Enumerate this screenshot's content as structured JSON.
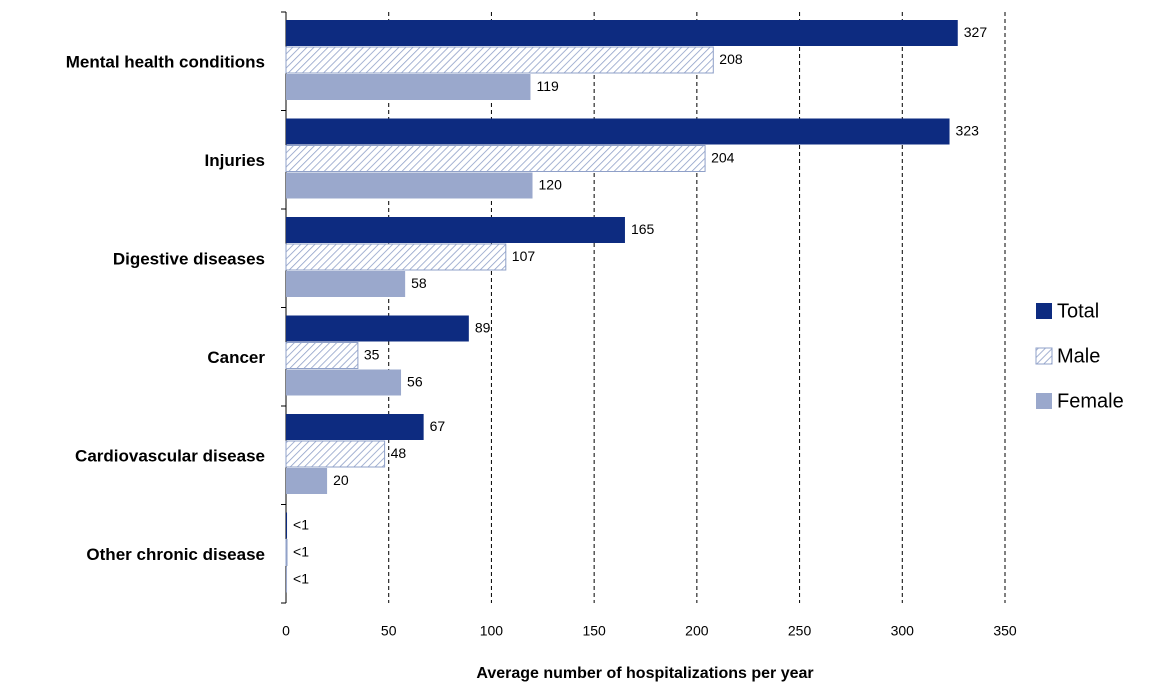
{
  "chart_data": {
    "type": "hbar",
    "x_label": "Average number of hospitalizations per year",
    "categories": [
      "Mental health conditions",
      "Injuries",
      "Digestive diseases",
      "Cancer",
      "Cardiovascular disease",
      "Other chronic disease"
    ],
    "series": [
      {
        "name": "Total",
        "color": "#0d2b80",
        "hatch": false,
        "values": [
          327,
          323,
          165,
          89,
          67,
          0.5
        ],
        "value_labels": [
          "327",
          "323",
          "165",
          "89",
          "67",
          "<1"
        ]
      },
      {
        "name": "Male",
        "color": "#8fa0c8",
        "hatch": true,
        "values": [
          208,
          204,
          107,
          35,
          48,
          0.5
        ],
        "value_labels": [
          "208",
          "204",
          "107",
          "35",
          "48",
          "<1"
        ]
      },
      {
        "name": "Female",
        "color": "#9aa8cc",
        "hatch": false,
        "values": [
          119,
          120,
          58,
          56,
          20,
          0.5
        ],
        "value_labels": [
          "119",
          "120",
          "58",
          "56",
          "20",
          "<1"
        ]
      }
    ],
    "xlim": [
      0,
      350
    ],
    "xticks": [
      0,
      50,
      100,
      150,
      200,
      250,
      300,
      350
    ],
    "grid": true,
    "legend": "right"
  }
}
